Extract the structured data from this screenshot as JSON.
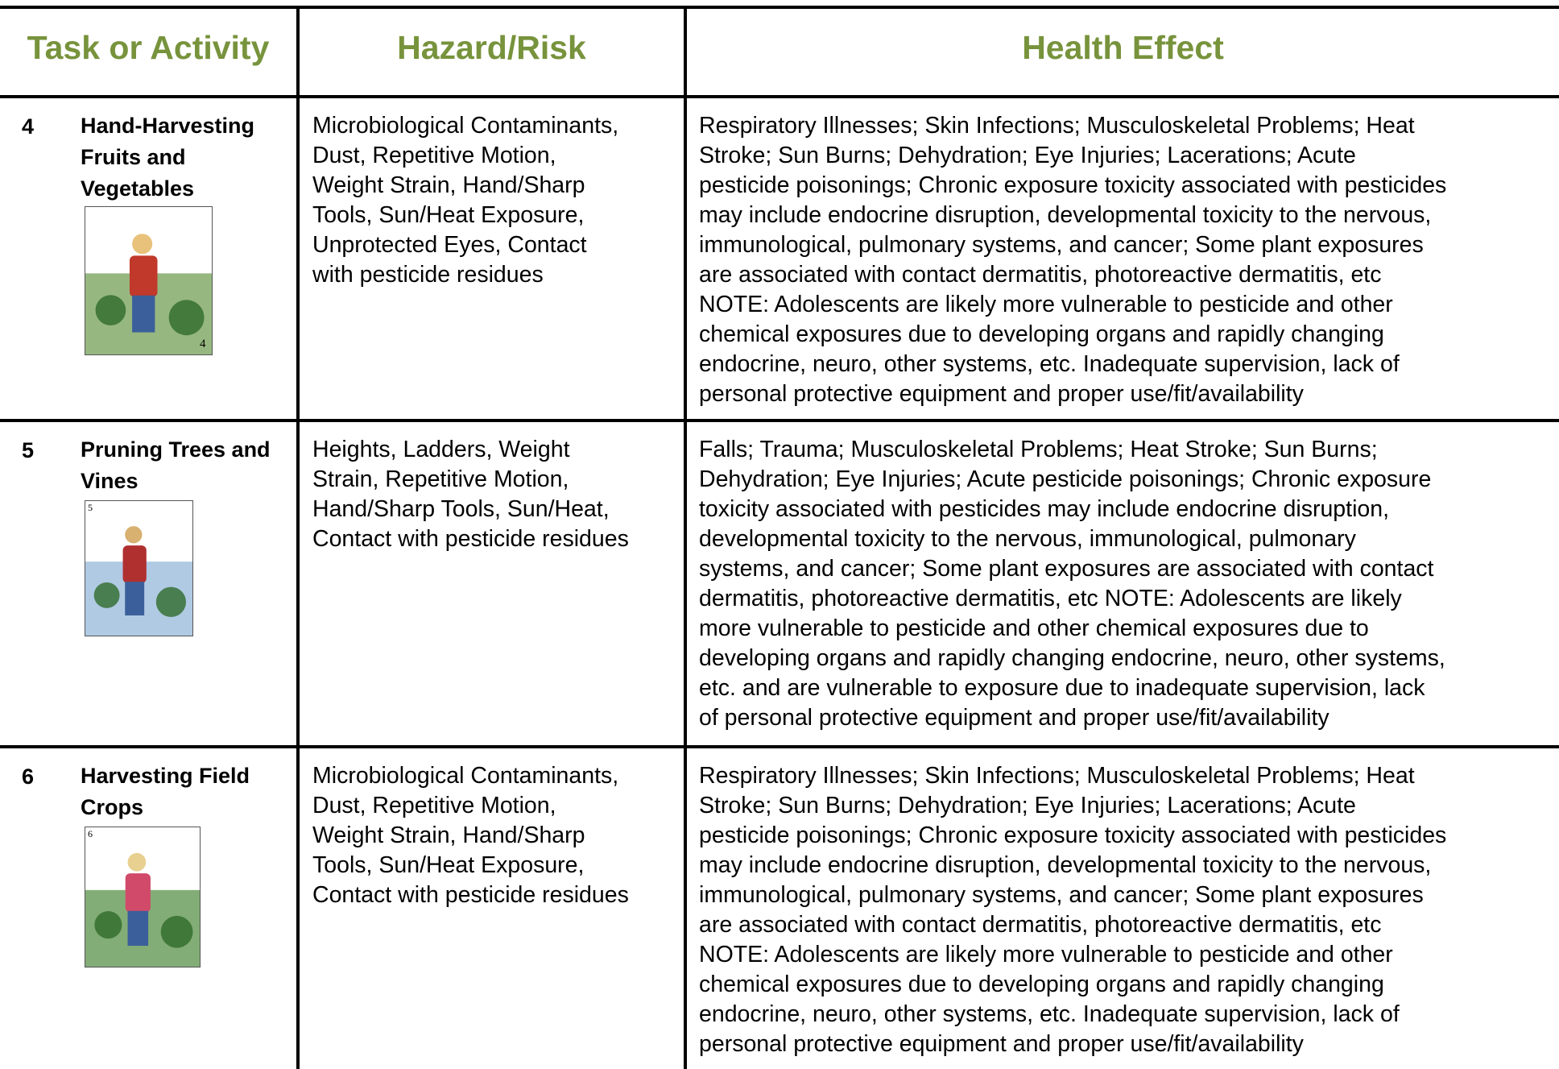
{
  "header": {
    "columns": [
      "Task or Activity",
      "Hazard/Risk",
      "Health Effect"
    ]
  },
  "table": {
    "rows": [
      {
        "number": "4",
        "task": [
          "Hand-Harvesting",
          "Fruits and",
          "Vegetables"
        ],
        "image_label": "4",
        "hazard": [
          "Microbiological Contaminants,",
          "Dust, Repetitive Motion,",
          "Weight Strain, Hand/Sharp",
          "Tools, Sun/Heat Exposure,",
          "Unprotected Eyes, Contact",
          "with pesticide residues"
        ],
        "health": [
          "Respiratory Illnesses; Skin Infections; Musculoskeletal Problems; Heat",
          "Stroke;  Sun Burns;  Dehydration; Eye Injuries; Lacerations; Acute",
          "pesticide poisonings; Chronic exposure toxicity associated with pesticides",
          "may include endocrine disruption, developmental toxicity to the nervous,",
          "immunological, pulmonary systems, and cancer; Some plant exposures",
          "are associated with contact dermatitis, photoreactive dermatitis, etc",
          "NOTE: Adolescents are likely more vulnerable to pesticide and other",
          "chemical exposures due to developing organs and rapidly changing",
          "endocrine, neuro, other systems, etc. Inadequate supervision, lack of",
          "personal protective equipment and  proper use/fit/availability"
        ]
      },
      {
        "number": "5",
        "task": [
          "Pruning Trees and",
          "Vines"
        ],
        "image_label": "5",
        "hazard": [
          "Heights, Ladders, Weight",
          "Strain, Repetitive Motion,",
          "Hand/Sharp Tools, Sun/Heat,",
          "Contact with pesticide residues"
        ],
        "health": [
          "Falls; Trauma; Musculoskeletal Problems; Heat Stroke; Sun Burns;",
          "Dehydration;  Eye Injuries; Acute pesticide poisonings; Chronic exposure",
          "toxicity associated with pesticides may include endocrine disruption,",
          "developmental toxicity to the nervous, immunological, pulmonary",
          "systems, and cancer; Some plant exposures are associated with contact",
          "dermatitis, photoreactive dermatitis, etc  NOTE: Adolescents are likely",
          "more vulnerable to pesticide and other chemical exposures due to",
          "developing organs and rapidly changing endocrine, neuro, other systems,",
          "etc. and are vulnerable to exposure due to inadequate supervision, lack",
          "of personal protective equipment and  proper use/fit/availability"
        ]
      },
      {
        "number": "6",
        "task": [
          "Harvesting Field",
          "Crops"
        ],
        "image_label": "6",
        "hazard": [
          "Microbiological Contaminants,",
          "Dust, Repetitive Motion,",
          "Weight Strain, Hand/Sharp",
          "Tools, Sun/Heat Exposure,",
          "Contact with pesticide residues"
        ],
        "health": [
          "Respiratory Illnesses; Skin Infections; Musculoskeletal Problems; Heat",
          "Stroke;  Sun Burns;  Dehydration; Eye Injuries; Lacerations; Acute",
          "pesticide poisonings; Chronic exposure toxicity associated with pesticides",
          "may include endocrine disruption, developmental toxicity to the nervous,",
          "immunological, pulmonary systems, and cancer;  Some plant exposures",
          "are associated with contact dermatitis, photoreactive dermatitis, etc",
          "NOTE: Adolescents are likely more vulnerable to pesticide and other",
          "chemical exposures due to developing organs and rapidly changing",
          "endocrine, neuro, other systems, etc. Inadequate supervision, lack of",
          "personal protective equipment and  proper use/fit/availability"
        ]
      }
    ]
  }
}
